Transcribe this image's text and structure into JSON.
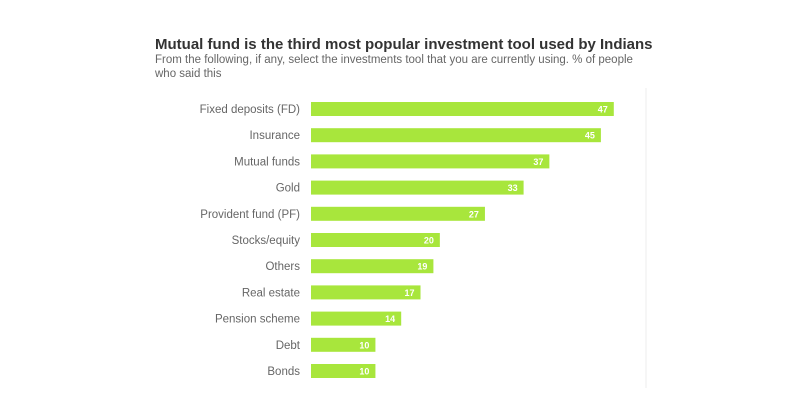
{
  "chart_data": {
    "type": "bar",
    "orientation": "horizontal",
    "title": "Mutual fund is the third most popular investment tool used by Indians",
    "subtitle": "From the following, if any, select the investments tool that you are currently using. % of people who said this",
    "categories": [
      "Fixed deposits (FD)",
      "Insurance",
      "Mutual funds",
      "Gold",
      "Provident fund (PF)",
      "Stocks/equity",
      "Others",
      "Real estate",
      "Pension scheme",
      "Debt",
      "Bonds"
    ],
    "values": [
      47,
      45,
      37,
      33,
      27,
      20,
      19,
      17,
      14,
      10,
      10
    ],
    "xlim": [
      0,
      52
    ],
    "color": "#a8e63c",
    "label_color": "#ffffff"
  }
}
